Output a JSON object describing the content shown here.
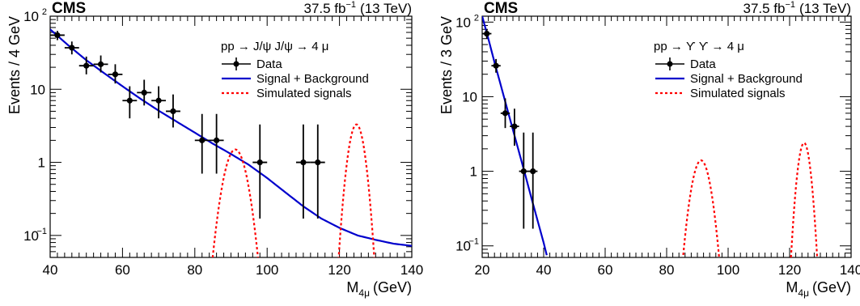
{
  "chart_data": [
    {
      "type": "scatter",
      "experiment": "CMS",
      "lumi_label": "37.5 fb",
      "lumi_sup": "-1",
      "energy_label": "(13 TeV)",
      "process_label": "pp → J/ψ J/ψ → 4 μ",
      "ylabel": "Events / 4 GeV",
      "xlabel_main": "M",
      "xlabel_sub": "4μ",
      "xlabel_unit": "(GeV)",
      "xlim": [
        40,
        140
      ],
      "ylim": [
        0.05,
        100
      ],
      "yscale": "log",
      "xticks": [
        "40",
        "60",
        "80",
        "100",
        "120",
        "140"
      ],
      "xtick_values": [
        40,
        60,
        80,
        100,
        120,
        140
      ],
      "legend": {
        "placement": "top-right",
        "entries": [
          "Data",
          "Signal + Background",
          "Simulated signals"
        ]
      },
      "data": {
        "x": [
          42,
          46,
          50,
          54,
          58,
          62,
          66,
          70,
          74,
          82,
          86,
          98,
          110,
          114
        ],
        "y": [
          55,
          37,
          21,
          22,
          16,
          7,
          9,
          7,
          5,
          2,
          2,
          1,
          1,
          1
        ],
        "yerr_up": [
          63,
          45,
          28,
          29,
          22,
          11,
          13.5,
          11,
          8.5,
          4.6,
          4.6,
          3.3,
          3.3,
          3.3
        ],
        "yerr_low": [
          47,
          30,
          16,
          17,
          12,
          4,
          6,
          4,
          3,
          0.7,
          0.7,
          0.17,
          0.17,
          0.17
        ],
        "xerr": 2
      },
      "fit_curve": {
        "name": "Signal + Background",
        "color": "#0000cc",
        "x": [
          40,
          45,
          50,
          55,
          60,
          65,
          70,
          75,
          80,
          85,
          90,
          95,
          100,
          105,
          110,
          115,
          120,
          125,
          130,
          135,
          140
        ],
        "y": [
          66,
          40,
          25,
          16.5,
          11,
          7.4,
          5.1,
          3.6,
          2.55,
          1.8,
          1.3,
          0.92,
          0.61,
          0.39,
          0.25,
          0.17,
          0.127,
          0.1,
          0.087,
          0.077,
          0.072
        ]
      },
      "signals": {
        "name": "Simulated signals",
        "color": "#ff0000",
        "peaks": [
          {
            "center": 91.2,
            "sigma": 2.4,
            "height": 1.5
          },
          {
            "center": 124.7,
            "sigma": 1.7,
            "height": 3.3
          }
        ]
      }
    },
    {
      "type": "scatter",
      "experiment": "CMS",
      "lumi_label": "37.5 fb",
      "lumi_sup": "-1",
      "energy_label": "(13 TeV)",
      "process_label": "pp → ϒ ϒ → 4 μ",
      "ylabel": "Events / 3 GeV",
      "xlabel_main": "M",
      "xlabel_sub": "4μ",
      "xlabel_unit": "(GeV)",
      "xlim": [
        20,
        140
      ],
      "ylim": [
        0.07,
        120
      ],
      "yscale": "log",
      "xticks": [
        "20",
        "40",
        "60",
        "80",
        "100",
        "120",
        "140"
      ],
      "xtick_values": [
        20,
        40,
        60,
        80,
        100,
        120,
        140
      ],
      "legend": {
        "placement": "top-right",
        "entries": [
          "Data",
          "Signal + Background",
          "Simulated signals"
        ]
      },
      "data": {
        "x": [
          21.5,
          24.5,
          27.5,
          30.5,
          33.5,
          36.5
        ],
        "y": [
          70,
          26,
          6,
          4,
          1,
          1
        ],
        "yerr_up": [
          80,
          32,
          9.5,
          6.9,
          3.3,
          3.3
        ],
        "yerr_low": [
          60,
          21,
          3.8,
          2.2,
          0.17,
          0.17
        ],
        "xerr": 1.5
      },
      "fit_curve": {
        "name": "Signal + Background",
        "color": "#0000cc",
        "x": [
          20,
          22,
          24,
          26,
          28,
          30,
          32,
          34,
          36,
          38,
          40,
          41
        ],
        "y": [
          120,
          60,
          29,
          14.5,
          7.2,
          3.6,
          1.8,
          0.9,
          0.44,
          0.22,
          0.11,
          0.075
        ]
      },
      "signals": {
        "name": "Simulated signals",
        "color": "#ff0000",
        "peaks": [
          {
            "center": 91.2,
            "sigma": 2.4,
            "height": 1.4
          },
          {
            "center": 124.7,
            "sigma": 1.6,
            "height": 2.4
          }
        ]
      }
    }
  ]
}
